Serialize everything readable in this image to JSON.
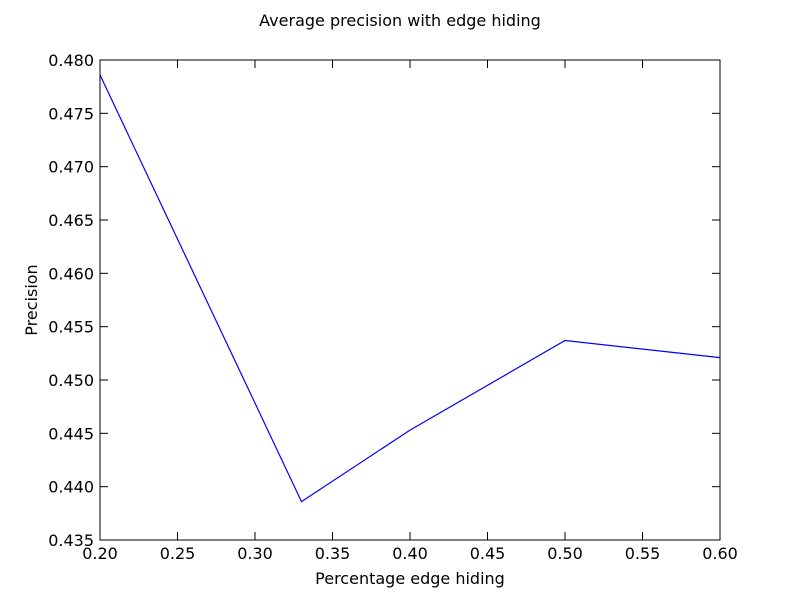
{
  "chart_data": {
    "type": "line",
    "title": "Average precision with edge hiding",
    "xlabel": "Percentage edge hiding",
    "ylabel": "Precision",
    "xlim": [
      0.2,
      0.6
    ],
    "ylim": [
      0.435,
      0.48
    ],
    "x_ticks": [
      "0.20",
      "0.25",
      "0.30",
      "0.35",
      "0.40",
      "0.45",
      "0.50",
      "0.55",
      "0.60"
    ],
    "y_ticks": [
      "0.435",
      "0.440",
      "0.445",
      "0.450",
      "0.455",
      "0.460",
      "0.465",
      "0.470",
      "0.475",
      "0.480"
    ],
    "grid": false,
    "series": [
      {
        "color": "#0000ff",
        "x": [
          0.2,
          0.33,
          0.4,
          0.5,
          0.6
        ],
        "y": [
          0.4786,
          0.4386,
          0.4453,
          0.4537,
          0.4521
        ]
      }
    ]
  }
}
